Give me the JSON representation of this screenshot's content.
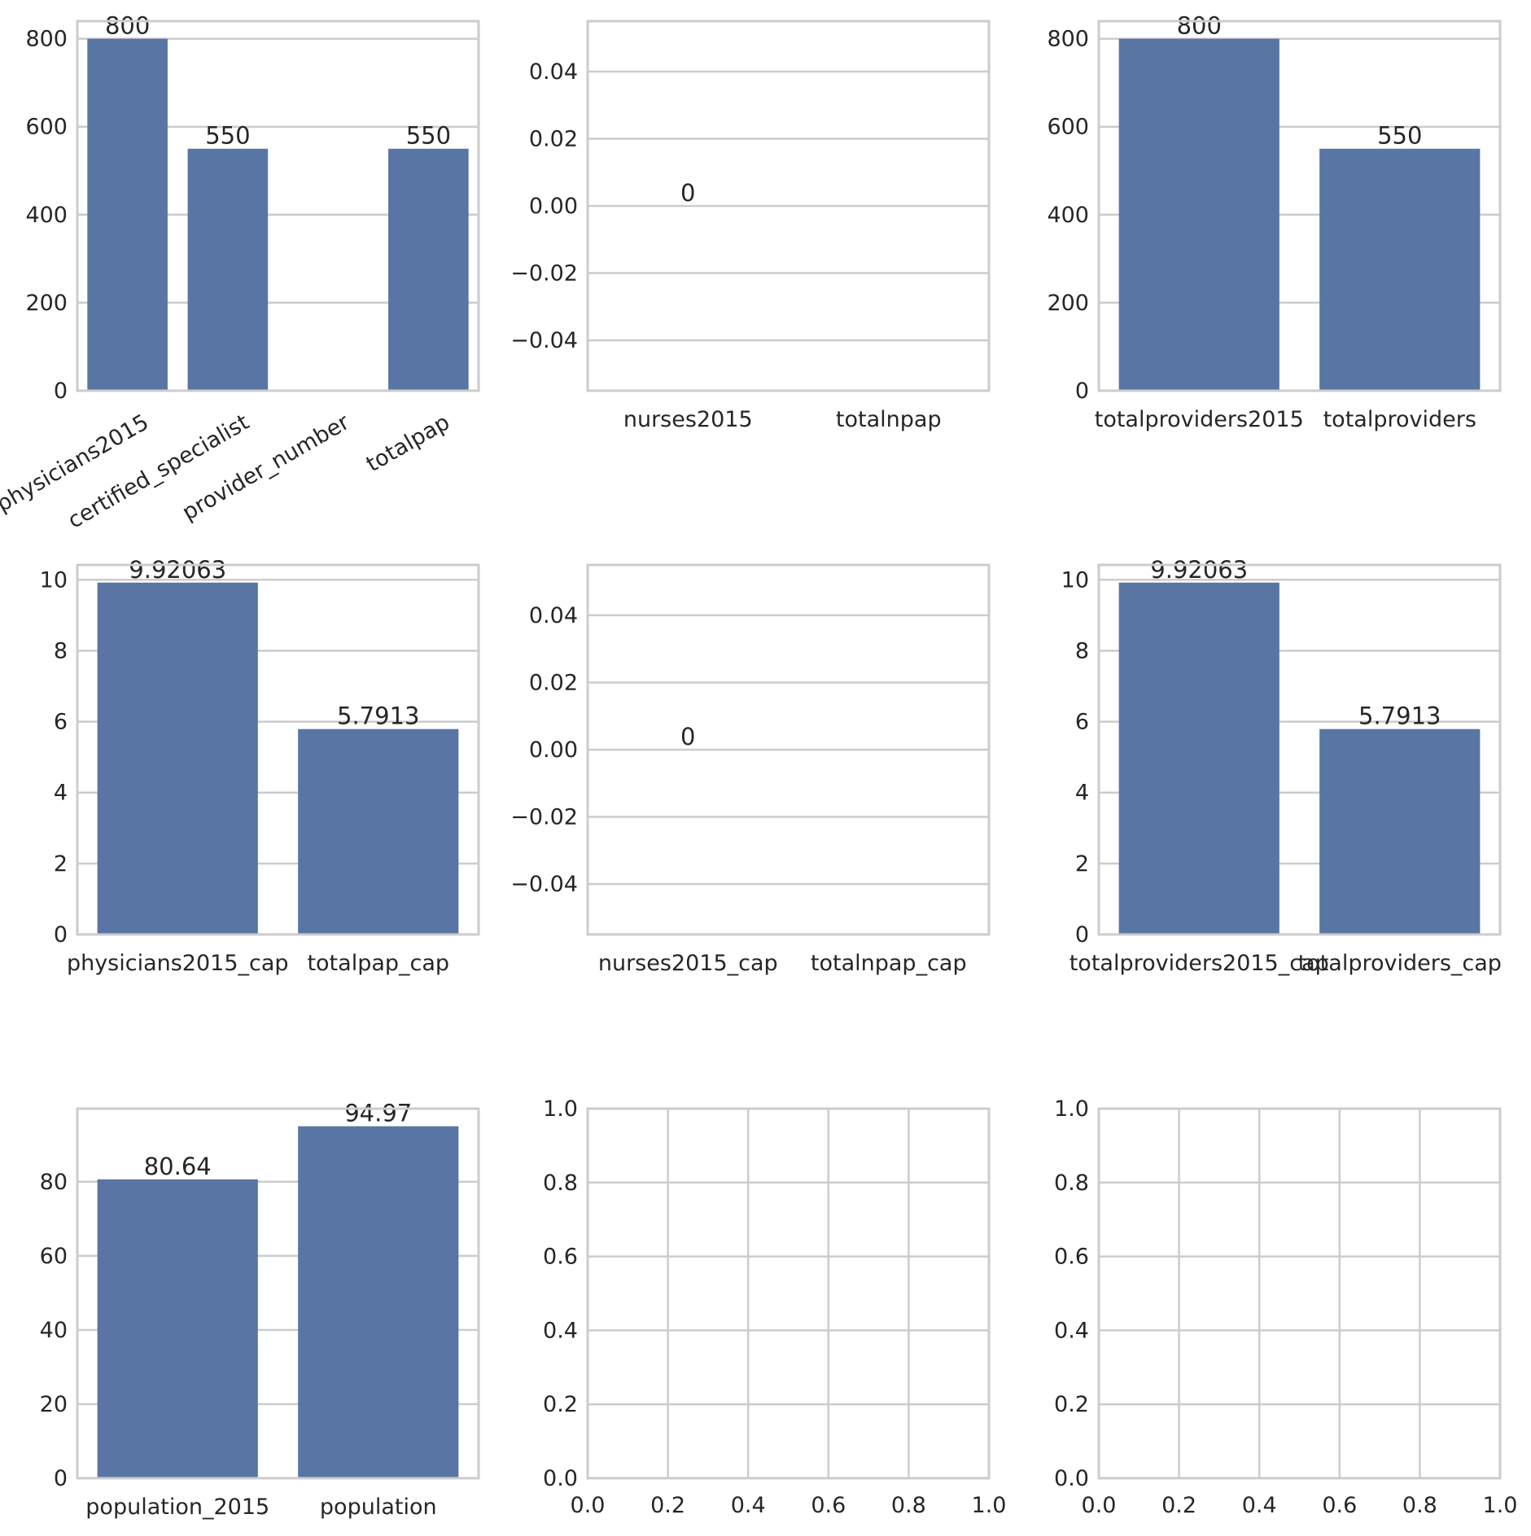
{
  "chart_data": [
    {
      "type": "bar",
      "categories": [
        "physicians2015",
        "certified_specialist",
        "provider_number",
        "totalpap"
      ],
      "values": [
        800,
        550,
        null,
        550
      ],
      "data_labels": [
        "800",
        "550",
        "",
        "550"
      ],
      "yticks": [
        "0",
        "200",
        "400",
        "600",
        "800"
      ],
      "ylim": [
        0,
        840
      ],
      "xtick_rotation": 30,
      "grid": "horizontal"
    },
    {
      "type": "bar",
      "categories": [
        "nurses2015",
        "totalnpap"
      ],
      "values": [
        0,
        null
      ],
      "data_labels": [
        "0",
        ""
      ],
      "yticks": [
        "−0.04",
        "−0.02",
        "0.00",
        "0.02",
        "0.04"
      ],
      "ylim": [
        -0.055,
        0.055
      ],
      "grid": "horizontal"
    },
    {
      "type": "bar",
      "categories": [
        "totalproviders2015",
        "totalproviders"
      ],
      "values": [
        800,
        550
      ],
      "data_labels": [
        "800",
        "550"
      ],
      "yticks": [
        "0",
        "200",
        "400",
        "600",
        "800"
      ],
      "ylim": [
        0,
        840
      ],
      "grid": "horizontal"
    },
    {
      "type": "bar",
      "categories": [
        "physicians2015_cap",
        "totalpap_cap"
      ],
      "values": [
        9.92063,
        5.7913
      ],
      "data_labels": [
        "9.92063",
        "5.7913"
      ],
      "yticks": [
        "0",
        "2",
        "4",
        "6",
        "8",
        "10"
      ],
      "ylim": [
        0,
        10.42
      ],
      "grid": "horizontal"
    },
    {
      "type": "bar",
      "categories": [
        "nurses2015_cap",
        "totalnpap_cap"
      ],
      "values": [
        0,
        null
      ],
      "data_labels": [
        "0",
        ""
      ],
      "yticks": [
        "−0.04",
        "−0.02",
        "0.00",
        "0.02",
        "0.04"
      ],
      "ylim": [
        -0.055,
        0.055
      ],
      "grid": "horizontal"
    },
    {
      "type": "bar",
      "categories": [
        "totalproviders2015_cap",
        "totalproviders_cap"
      ],
      "values": [
        9.92063,
        5.7913
      ],
      "data_labels": [
        "9.92063",
        "5.7913"
      ],
      "yticks": [
        "0",
        "2",
        "4",
        "6",
        "8",
        "10"
      ],
      "ylim": [
        0,
        10.42
      ],
      "grid": "horizontal"
    },
    {
      "type": "bar",
      "categories": [
        "population_2015",
        "population"
      ],
      "values": [
        80.64,
        94.97
      ],
      "data_labels": [
        "80.64",
        "94.97"
      ],
      "yticks": [
        "0",
        "20",
        "40",
        "60",
        "80"
      ],
      "ylim": [
        0,
        99.72
      ],
      "grid": "horizontal"
    },
    {
      "type": "empty",
      "xticks": [
        "0.0",
        "0.2",
        "0.4",
        "0.6",
        "0.8",
        "1.0"
      ],
      "yticks": [
        "0.0",
        "0.2",
        "0.4",
        "0.6",
        "0.8",
        "1.0"
      ],
      "xlim": [
        0,
        1
      ],
      "ylim": [
        0,
        1
      ],
      "grid": "both"
    },
    {
      "type": "empty",
      "xticks": [
        "0.0",
        "0.2",
        "0.4",
        "0.6",
        "0.8",
        "1.0"
      ],
      "yticks": [
        "0.0",
        "0.2",
        "0.4",
        "0.6",
        "0.8",
        "1.0"
      ],
      "xlim": [
        0,
        1
      ],
      "ylim": [
        0,
        1
      ],
      "grid": "both"
    }
  ],
  "colors": {
    "bar": "#5975a4",
    "grid": "#cccccc",
    "text": "#262626"
  }
}
